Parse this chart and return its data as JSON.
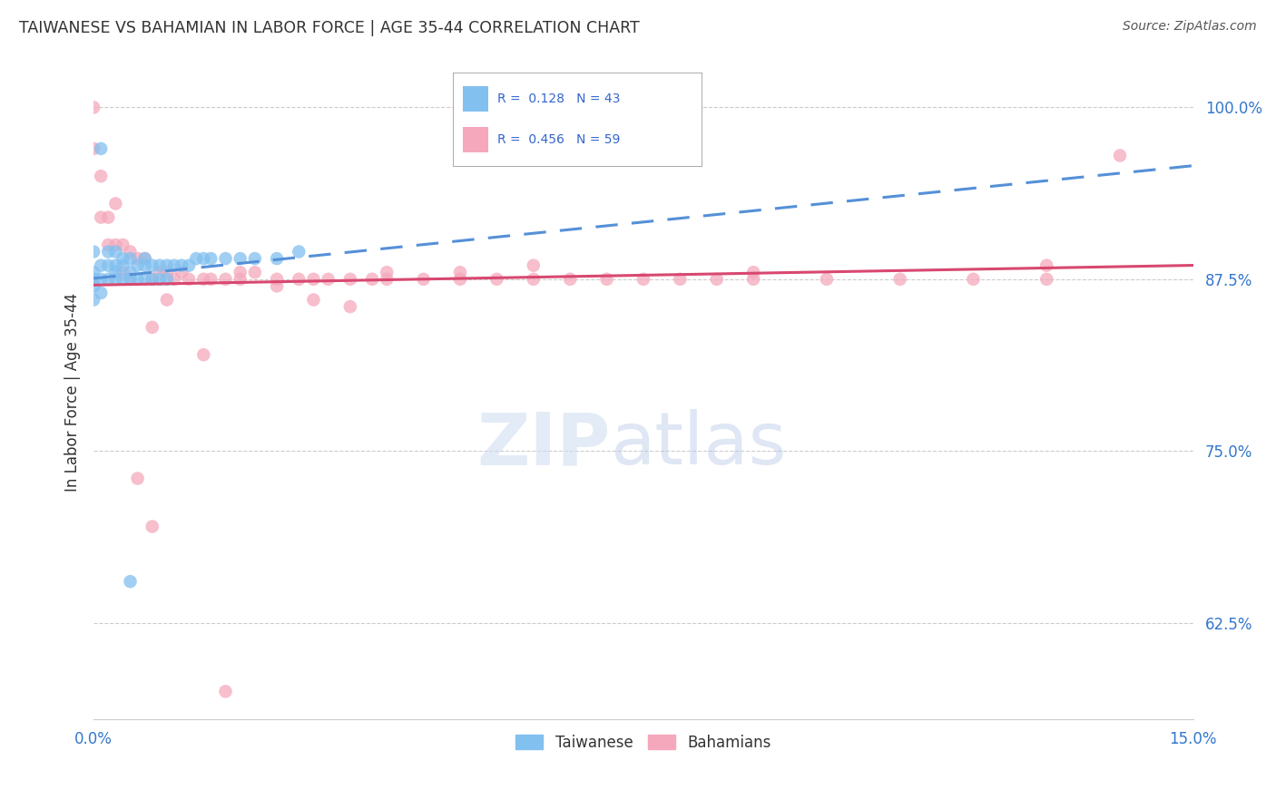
{
  "title": "TAIWANESE VS BAHAMIAN IN LABOR FORCE | AGE 35-44 CORRELATION CHART",
  "source": "Source: ZipAtlas.com",
  "ylabel": "In Labor Force | Age 35-44",
  "xlim": [
    0.0,
    0.15
  ],
  "ylim": [
    0.555,
    1.03
  ],
  "yticks": [
    0.625,
    0.75,
    0.875,
    1.0
  ],
  "ytick_labels": [
    "62.5%",
    "75.0%",
    "87.5%",
    "100.0%"
  ],
  "xtick_labels": [
    "0.0%",
    "15.0%"
  ],
  "taiwanese_color": "#82c0f0",
  "bahamian_color": "#f5a8bc",
  "trendline_taiwanese_color": "#5590d8",
  "trendline_bahamian_color": "#d84870",
  "title_color": "#333333",
  "source_color": "#555555",
  "axis_label_color": "#333333",
  "tick_color": "#3377cc",
  "grid_color": "#cccccc",
  "background_color": "#ffffff",
  "r_label_color": "#3366cc",
  "taiwanese_x": [
    0.0,
    0.0,
    0.0,
    0.0,
    0.0,
    0.001,
    0.001,
    0.001,
    0.002,
    0.002,
    0.002,
    0.003,
    0.003,
    0.003,
    0.003,
    0.004,
    0.004,
    0.004,
    0.005,
    0.005,
    0.005,
    0.006,
    0.006,
    0.007,
    0.007,
    0.007,
    0.008,
    0.008,
    0.009,
    0.009,
    0.01,
    0.01,
    0.011,
    0.012,
    0.013,
    0.014,
    0.015,
    0.016,
    0.018,
    0.02,
    0.022,
    0.025,
    0.028
  ],
  "taiwanese_y": [
    0.895,
    0.88,
    0.875,
    0.87,
    0.86,
    0.885,
    0.875,
    0.865,
    0.895,
    0.885,
    0.875,
    0.895,
    0.885,
    0.88,
    0.875,
    0.89,
    0.885,
    0.875,
    0.89,
    0.88,
    0.875,
    0.885,
    0.875,
    0.89,
    0.885,
    0.875,
    0.885,
    0.875,
    0.885,
    0.875,
    0.885,
    0.875,
    0.885,
    0.885,
    0.885,
    0.89,
    0.89,
    0.89,
    0.89,
    0.89,
    0.89,
    0.89,
    0.895
  ],
  "taiwanese_outlier_x": [
    0.001
  ],
  "taiwanese_outlier_y": [
    0.97
  ],
  "taiwanese_low_x": [
    0.005
  ],
  "taiwanese_low_y": [
    0.655
  ],
  "bahamian_x": [
    0.0,
    0.0,
    0.001,
    0.001,
    0.002,
    0.002,
    0.003,
    0.003,
    0.004,
    0.004,
    0.005,
    0.005,
    0.006,
    0.007,
    0.008,
    0.009,
    0.01,
    0.011,
    0.012,
    0.013,
    0.015,
    0.016,
    0.018,
    0.02,
    0.022,
    0.025,
    0.028,
    0.03,
    0.032,
    0.035,
    0.038,
    0.04,
    0.045,
    0.05,
    0.055,
    0.06,
    0.065,
    0.07,
    0.075,
    0.08,
    0.085,
    0.09,
    0.1,
    0.11,
    0.12,
    0.13,
    0.14,
    0.008,
    0.01,
    0.015,
    0.02,
    0.025,
    0.03,
    0.035,
    0.04,
    0.05,
    0.06,
    0.09,
    0.13
  ],
  "bahamian_y": [
    1.0,
    0.97,
    0.95,
    0.92,
    0.92,
    0.9,
    0.93,
    0.9,
    0.9,
    0.88,
    0.895,
    0.875,
    0.89,
    0.89,
    0.875,
    0.88,
    0.88,
    0.875,
    0.88,
    0.875,
    0.875,
    0.875,
    0.875,
    0.875,
    0.88,
    0.875,
    0.875,
    0.875,
    0.875,
    0.875,
    0.875,
    0.875,
    0.875,
    0.875,
    0.875,
    0.875,
    0.875,
    0.875,
    0.875,
    0.875,
    0.875,
    0.875,
    0.875,
    0.875,
    0.875,
    0.875,
    0.965,
    0.84,
    0.86,
    0.82,
    0.88,
    0.87,
    0.86,
    0.855,
    0.88,
    0.88,
    0.885,
    0.88,
    0.885
  ],
  "bahamian_outlier1_x": [
    0.025
  ],
  "bahamian_outlier1_y": [
    0.885
  ],
  "bahamian_low1_x": [
    0.006
  ],
  "bahamian_low1_y": [
    0.73
  ],
  "bahamian_low2_x": [
    0.008
  ],
  "bahamian_low2_y": [
    0.695
  ],
  "bahamian_low3_x": [
    0.018
  ],
  "bahamian_low3_y": [
    0.575
  ]
}
